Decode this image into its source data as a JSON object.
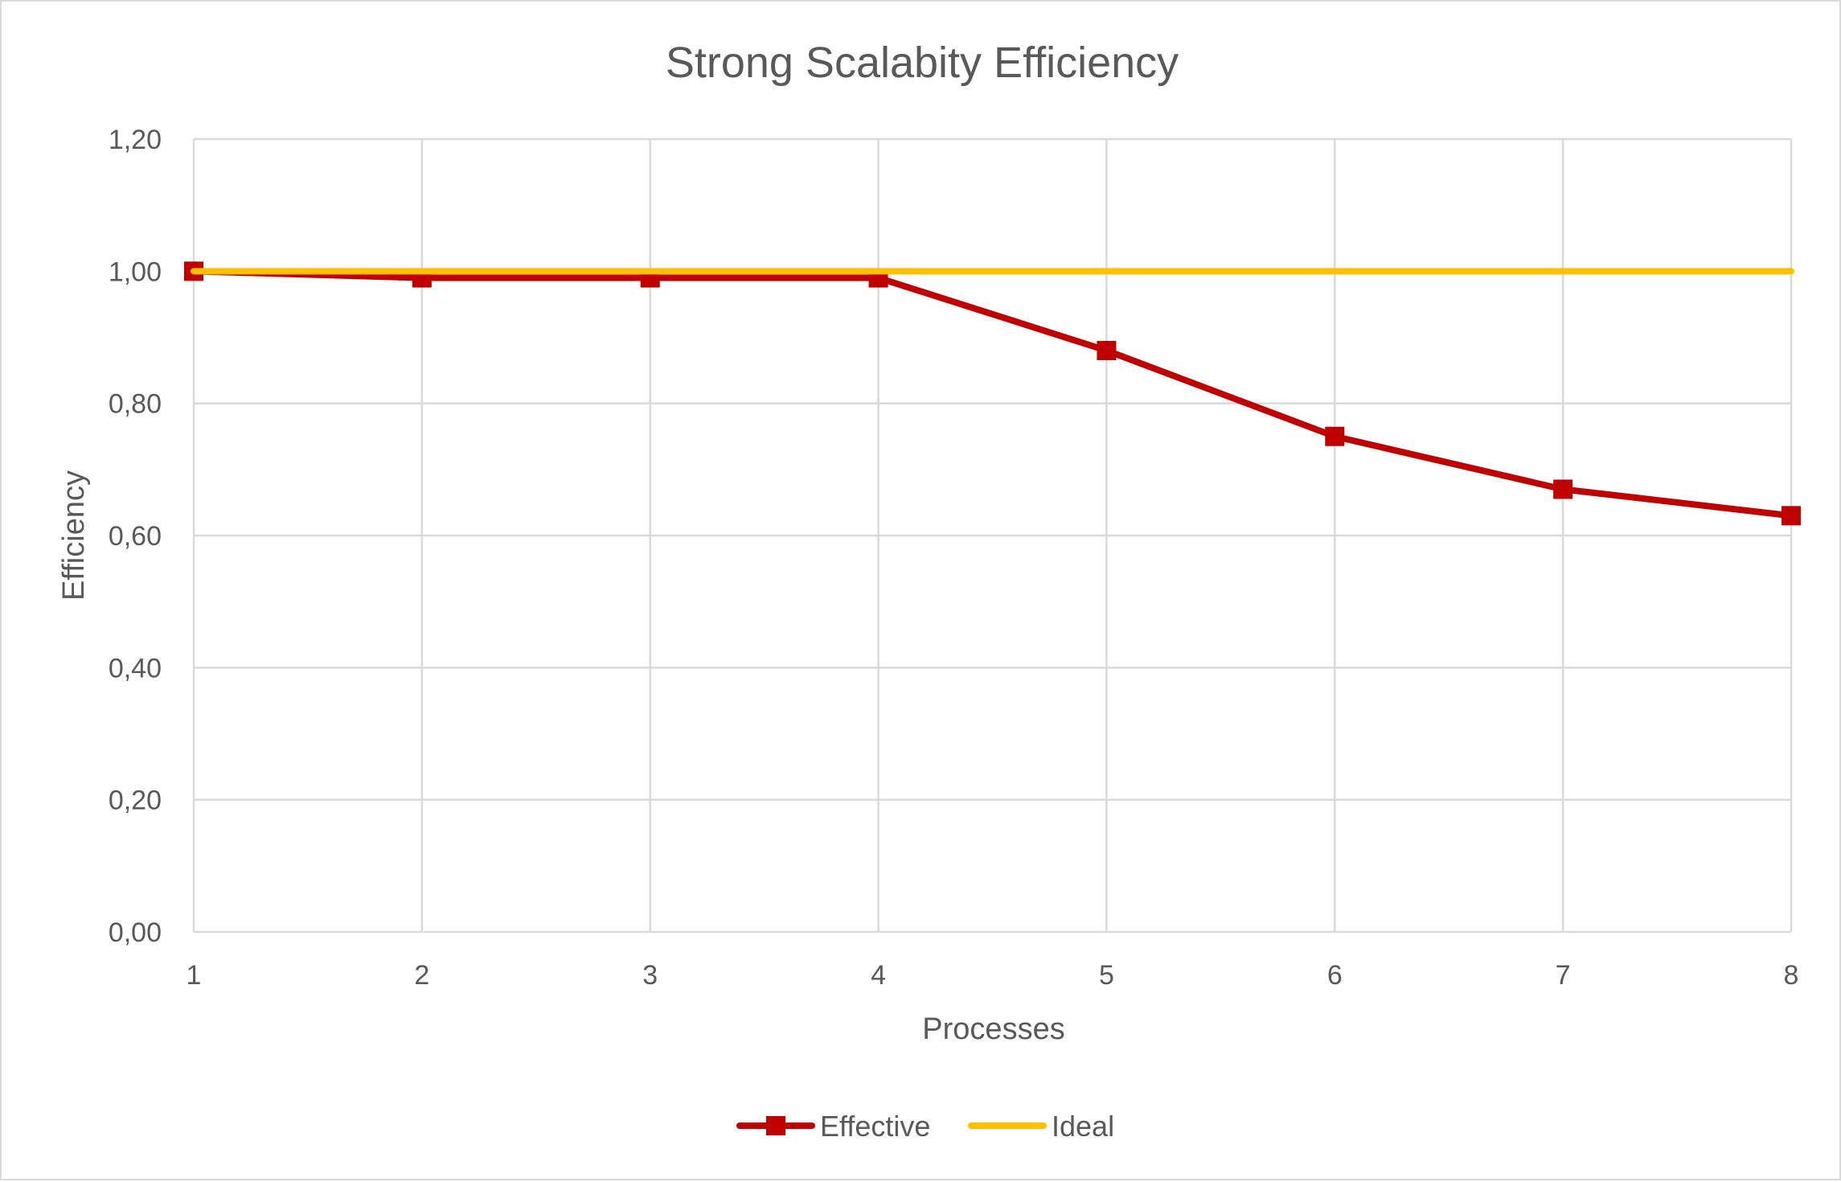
{
  "chart_data": {
    "type": "line",
    "title": "Strong Scalabity Efficiency",
    "xlabel": "Processes",
    "ylabel": "Efficiency",
    "x": [
      1,
      2,
      3,
      4,
      5,
      6,
      7,
      8
    ],
    "x_tick_labels": [
      "1",
      "2",
      "3",
      "4",
      "5",
      "6",
      "7",
      "8"
    ],
    "ylim": [
      0,
      1.2
    ],
    "y_tick_labels": [
      "0,00",
      "0,20",
      "0,40",
      "0,60",
      "0,80",
      "1,00",
      "1,20"
    ],
    "grid": true,
    "legend_position": "bottom",
    "series": [
      {
        "name": "Effective",
        "color": "#c00000",
        "marker": "square",
        "values": [
          1.0,
          0.99,
          0.99,
          0.99,
          0.88,
          0.75,
          0.67,
          0.63
        ]
      },
      {
        "name": "Ideal",
        "color": "#ffc000",
        "marker": "none",
        "values": [
          1.0,
          1.0,
          1.0,
          1.0,
          1.0,
          1.0,
          1.0,
          1.0
        ]
      }
    ]
  }
}
